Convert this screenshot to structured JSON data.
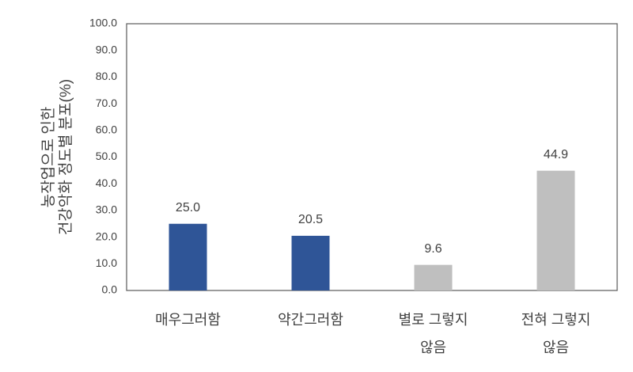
{
  "chart_data": {
    "type": "bar",
    "y_label": [
      "농작업으로 인한",
      "건강악화 정도별 분포(%)"
    ],
    "categories": [
      "매우그러함",
      "약간그러함",
      "별로 그렇지\n않음",
      "전혀 그렇지\n않음"
    ],
    "values": [
      25.0,
      20.5,
      9.6,
      44.9
    ],
    "value_labels": [
      "25.0",
      "20.5",
      "9.6",
      "44.9"
    ],
    "colors": [
      "#2f5597",
      "#2f5597",
      "#bfbfbf",
      "#bfbfbf"
    ],
    "ylim": [
      0,
      100
    ],
    "yticks": [
      {
        "value": 0,
        "label": "0.0"
      },
      {
        "value": 10,
        "label": "10.0"
      },
      {
        "value": 20,
        "label": "20.0"
      },
      {
        "value": 30,
        "label": "30.0"
      },
      {
        "value": 40,
        "label": "40.0"
      },
      {
        "value": 50,
        "label": "50.0"
      },
      {
        "value": 60,
        "label": "60.0"
      },
      {
        "value": 70,
        "label": "70.0"
      },
      {
        "value": 80,
        "label": "80.0"
      },
      {
        "value": 90,
        "label": "90.0"
      },
      {
        "value": 100,
        "label": "100.0"
      }
    ],
    "grid": false
  }
}
